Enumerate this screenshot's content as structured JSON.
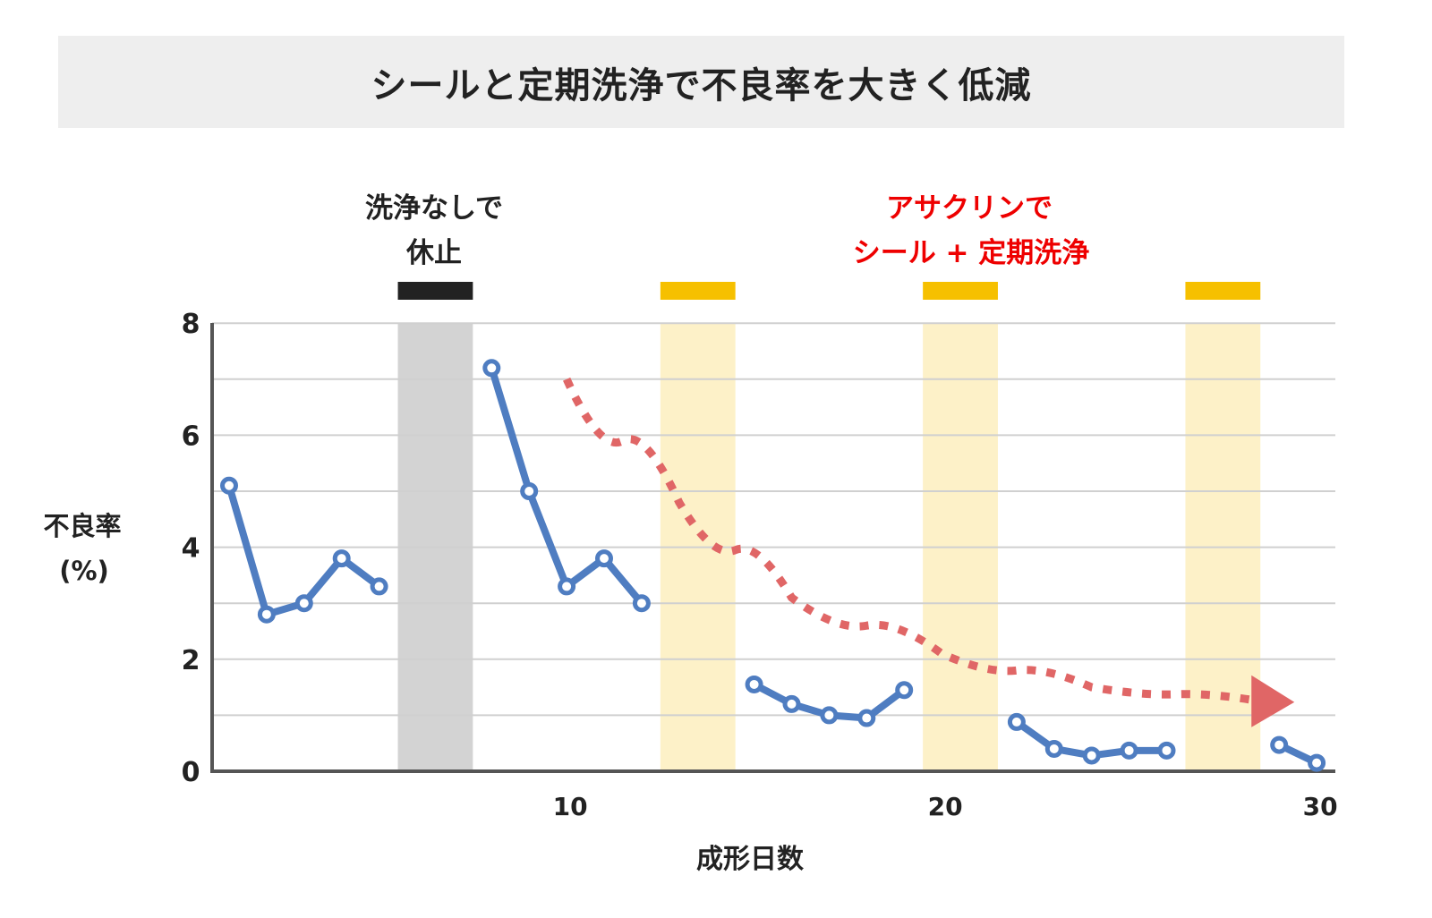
{
  "title": "シールと定期洗浄で不良率を大きく低減",
  "annotations": {
    "shutdown": {
      "line1": "洗浄なしで",
      "line2": "休止",
      "color": "#222222"
    },
    "treatment": {
      "line1": "アサクリンで",
      "line2": "シール + 定期洗浄",
      "color": "#ee0000"
    }
  },
  "axes": {
    "ylabel_line1": "不良率",
    "ylabel_line2": "(%)",
    "xlabel": "成形日数",
    "yticks": [
      "0",
      "2",
      "4",
      "6",
      "8"
    ],
    "xticks": [
      "10",
      "20",
      "30"
    ]
  },
  "colors": {
    "series": "#4f7dc1",
    "trend_arrow": "#e06666",
    "shutdown_band": "#d3d3d3",
    "shutdown_marker": "#222222",
    "cleaning_band": "#fdf1c8",
    "cleaning_marker": "#f6c000",
    "gridline": "#d0d0d0",
    "axis": "#555555",
    "title_bg": "#eeeeee"
  },
  "chart_data": {
    "type": "line",
    "title": "シールと定期洗浄で不良率を大きく低減",
    "xlabel": "成形日数",
    "ylabel": "不良率 (%)",
    "xlim": [
      0.5,
      30.5
    ],
    "ylim": [
      0,
      8
    ],
    "yticks": [
      0,
      2,
      4,
      6,
      8
    ],
    "xticks": [
      10,
      20,
      30
    ],
    "grid": true,
    "series": [
      {
        "name": "不良率",
        "segments": [
          {
            "x": [
              1,
              2,
              3,
              4,
              5
            ],
            "y": [
              5.1,
              2.8,
              3.0,
              3.8,
              3.3
            ]
          },
          {
            "x": [
              8,
              9,
              10,
              11,
              12
            ],
            "y": [
              7.2,
              5.0,
              3.3,
              3.8,
              3.0
            ]
          },
          {
            "x": [
              15,
              16,
              17,
              18,
              19
            ],
            "y": [
              1.55,
              1.2,
              1.0,
              0.95,
              1.45
            ]
          },
          {
            "x": [
              22,
              23,
              24,
              25,
              26
            ],
            "y": [
              0.88,
              0.4,
              0.28,
              0.37,
              0.37
            ]
          },
          {
            "x": [
              29,
              30
            ],
            "y": [
              0.47,
              0.15
            ]
          }
        ]
      }
    ],
    "bands": [
      {
        "type": "shutdown",
        "label": "洗浄なしで休止",
        "x_start": 5.5,
        "x_end": 7.5
      },
      {
        "type": "cleaning",
        "label": "アサクリンでシール + 定期洗浄",
        "x_start": 12.5,
        "x_end": 14.5
      },
      {
        "type": "cleaning",
        "label": "アサクリンでシール + 定期洗浄",
        "x_start": 19.5,
        "x_end": 21.5
      },
      {
        "type": "cleaning",
        "label": "アサクリンでシール + 定期洗浄",
        "x_start": 26.5,
        "x_end": 28.5
      }
    ],
    "trend_arrow": {
      "style": "dotted",
      "description": "decreasing trend",
      "points": [
        [
          10,
          7.0
        ],
        [
          13,
          4.8
        ],
        [
          16,
          3.1
        ],
        [
          20,
          2.1
        ],
        [
          24,
          1.5
        ],
        [
          28.5,
          1.25
        ]
      ]
    }
  }
}
